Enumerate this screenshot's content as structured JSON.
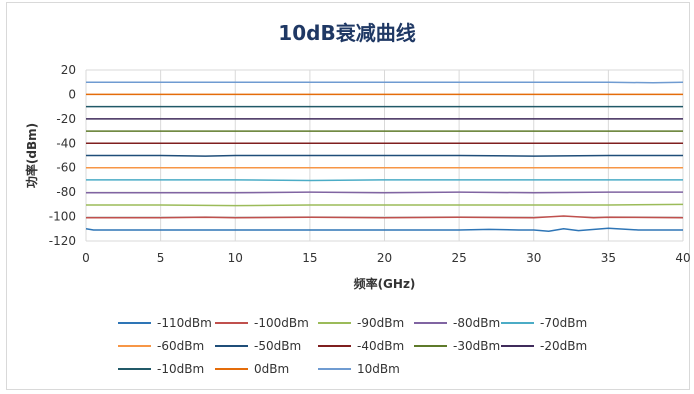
{
  "chart_data": {
    "type": "line",
    "title": "10dB衰减曲线",
    "xlabel": "频率(GHz)",
    "ylabel": "功率(dBm)",
    "xlim": [
      0,
      40
    ],
    "ylim": [
      -120,
      20
    ],
    "x_ticks": [
      0,
      5,
      10,
      15,
      20,
      25,
      30,
      35,
      40
    ],
    "y_ticks": [
      20,
      0,
      -20,
      -40,
      -60,
      -80,
      -100,
      -120
    ],
    "grid": true,
    "legend_position": "bottom",
    "series": [
      {
        "name": "-110dBm",
        "color": "#2e75b6",
        "x": [
          0,
          0.5,
          5,
          10,
          15,
          20,
          25,
          27,
          29,
          30,
          31,
          32,
          33,
          35,
          37,
          40
        ],
        "y": [
          -110,
          -111,
          -111,
          -111,
          -111,
          -111,
          -111,
          -110.5,
          -111,
          -111,
          -112,
          -110,
          -111.5,
          -109.5,
          -111,
          -111
        ]
      },
      {
        "name": "-100dBm",
        "color": "#c0504d",
        "x": [
          0,
          5,
          8,
          10,
          15,
          20,
          25,
          30,
          32,
          34,
          35,
          40
        ],
        "y": [
          -101,
          -101,
          -100.5,
          -101,
          -100.5,
          -101,
          -100.5,
          -101,
          -99.5,
          -101,
          -100.5,
          -101
        ]
      },
      {
        "name": "-90dBm",
        "color": "#9bbb59",
        "x": [
          0,
          5,
          10,
          15,
          20,
          25,
          30,
          35,
          40
        ],
        "y": [
          -90.5,
          -90.5,
          -91,
          -90.5,
          -90.5,
          -90.5,
          -90.5,
          -90.5,
          -90
        ]
      },
      {
        "name": "-80dBm",
        "color": "#8064a2",
        "x": [
          0,
          5,
          10,
          15,
          20,
          25,
          30,
          35,
          40
        ],
        "y": [
          -80.5,
          -80.5,
          -80.5,
          -80,
          -80.5,
          -80,
          -80.5,
          -80,
          -80
        ]
      },
      {
        "name": "-70dBm",
        "color": "#4bacc6",
        "x": [
          0,
          5,
          10,
          15,
          20,
          25,
          30,
          35,
          40
        ],
        "y": [
          -70,
          -70,
          -70,
          -70.5,
          -70,
          -70,
          -70,
          -70,
          -70
        ]
      },
      {
        "name": "-60dBm",
        "color": "#f79646",
        "x": [
          0,
          5,
          10,
          15,
          20,
          25,
          30,
          35,
          40
        ],
        "y": [
          -60,
          -60,
          -60,
          -60,
          -60,
          -60,
          -60,
          -60,
          -60
        ]
      },
      {
        "name": "-50dBm",
        "color": "#1f4e79",
        "x": [
          0,
          5,
          8,
          10,
          15,
          20,
          25,
          30,
          35,
          40
        ],
        "y": [
          -50,
          -50,
          -50.5,
          -50,
          -50,
          -50,
          -50,
          -50.5,
          -50,
          -50
        ]
      },
      {
        "name": "-40dBm",
        "color": "#7f1f1f",
        "x": [
          0,
          5,
          10,
          15,
          20,
          25,
          30,
          35,
          40
        ],
        "y": [
          -40,
          -40,
          -40,
          -40,
          -40,
          -40,
          -40,
          -40,
          -40
        ]
      },
      {
        "name": "-30dBm",
        "color": "#5e7a2a",
        "x": [
          0,
          5,
          10,
          15,
          20,
          25,
          30,
          35,
          40
        ],
        "y": [
          -30,
          -30,
          -30,
          -30,
          -30,
          -30,
          -30,
          -30,
          -30
        ]
      },
      {
        "name": "-20dBm",
        "color": "#3f2b5b",
        "x": [
          0,
          5,
          10,
          15,
          20,
          25,
          30,
          35,
          40
        ],
        "y": [
          -20,
          -20,
          -20,
          -20,
          -20,
          -20,
          -20,
          -20,
          -20
        ]
      },
      {
        "name": "-10dBm",
        "color": "#215968",
        "x": [
          0,
          5,
          10,
          15,
          20,
          25,
          30,
          35,
          40
        ],
        "y": [
          -10,
          -10,
          -10,
          -10,
          -10,
          -10,
          -10,
          -10,
          -10
        ]
      },
      {
        "name": "0dBm",
        "color": "#e46c0a",
        "x": [
          0,
          5,
          10,
          15,
          20,
          25,
          30,
          35,
          40
        ],
        "y": [
          0,
          0,
          0,
          0,
          0,
          0,
          0,
          0,
          0
        ]
      },
      {
        "name": "10dBm",
        "color": "#6f9bd1",
        "x": [
          0,
          5,
          10,
          15,
          20,
          25,
          30,
          35,
          38,
          40
        ],
        "y": [
          10,
          10,
          10,
          10,
          10,
          10,
          10,
          10,
          9.5,
          10
        ]
      }
    ]
  }
}
